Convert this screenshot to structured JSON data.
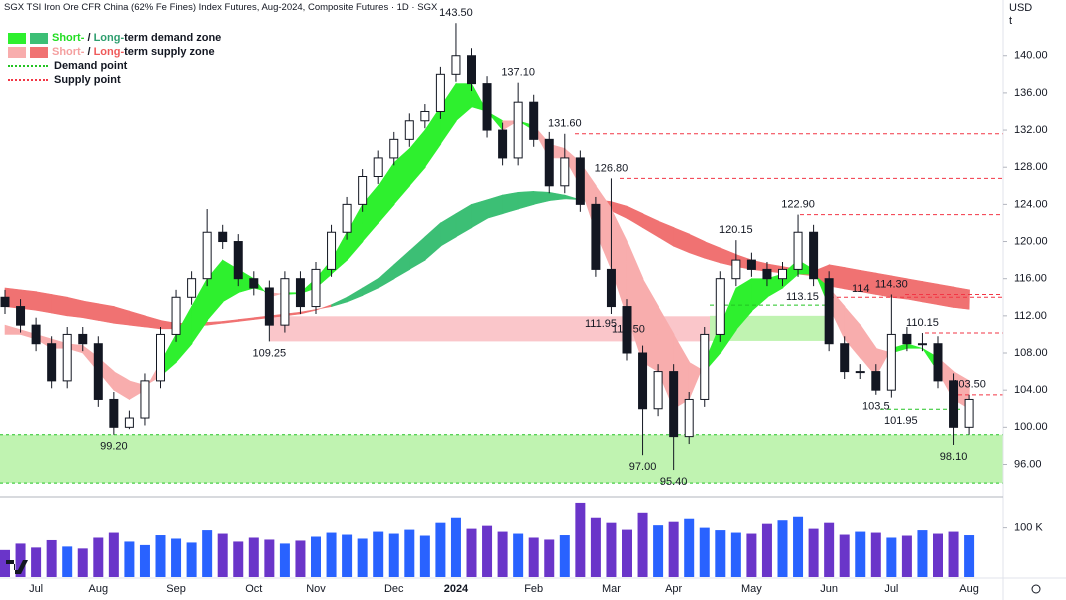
{
  "chart_data": {
    "type": "candlestick",
    "title": "SGX TSI Iron Ore CFR China (62% Fe Fines) Index Futures, Aug-2024, Composite Futures · 1D · SGX",
    "currency": "USD",
    "unit": "t",
    "categories": [
      null,
      null,
      "Jul",
      null,
      null,
      null,
      "Aug",
      null,
      null,
      null,
      null,
      "Sep",
      null,
      null,
      null,
      null,
      "Oct",
      null,
      null,
      null,
      "Nov",
      null,
      null,
      null,
      null,
      "Dec",
      null,
      null,
      null,
      "2024",
      null,
      null,
      null,
      null,
      "Feb",
      null,
      null,
      null,
      null,
      "Mar",
      null,
      null,
      null,
      "Apr",
      null,
      null,
      null,
      null,
      "May",
      null,
      null,
      null,
      null,
      "Jun",
      null,
      null,
      null,
      "Jul",
      null,
      null,
      null,
      null,
      "Aug"
    ],
    "open": [
      114,
      113,
      111,
      109,
      105,
      110,
      109,
      103,
      100,
      101,
      105,
      110,
      114,
      116,
      121,
      120,
      116,
      115,
      111,
      116,
      113,
      117,
      121,
      124,
      127,
      129,
      131,
      133,
      134,
      138,
      140,
      137,
      132,
      129,
      135,
      131,
      126,
      129,
      124,
      117,
      113,
      108,
      102,
      106,
      99,
      103,
      110,
      116,
      118,
      117,
      116,
      117,
      121,
      116,
      109,
      106,
      106,
      104,
      110,
      109,
      109,
      105,
      100
    ],
    "high": [
      114.8,
      113.8,
      111.8,
      109.8,
      110.8,
      110.8,
      109.8,
      103.8,
      101.8,
      105.8,
      110.8,
      114.8,
      116.8,
      123.5,
      121.8,
      120.8,
      116.8,
      115.8,
      116.8,
      116.8,
      117.8,
      121.8,
      124.8,
      127.8,
      129.8,
      131.8,
      133.8,
      134.8,
      138.8,
      143.5,
      140.8,
      137.8,
      132.8,
      137.1,
      135.8,
      131.8,
      131.6,
      129.8,
      124.8,
      126.8,
      113.8,
      108.8,
      106.8,
      106.8,
      103.8,
      110.8,
      116.8,
      120.15,
      118.8,
      117.8,
      117.8,
      122.9,
      121.8,
      116.8,
      109.8,
      106.8,
      106.8,
      114.3,
      110.8,
      110.15,
      109.8,
      105.8,
      103.5
    ],
    "low": [
      112.2,
      110.2,
      108.2,
      104.2,
      104.2,
      108.2,
      102.2,
      99.2,
      99.8,
      100.2,
      104.2,
      109.2,
      113.2,
      115.2,
      119.2,
      115.2,
      114.2,
      109.25,
      110.2,
      112.2,
      112.2,
      116.2,
      120.2,
      123.2,
      126.2,
      128.2,
      130.2,
      132.2,
      133.2,
      137.2,
      136.2,
      131.2,
      128.2,
      128.2,
      130.2,
      125.2,
      125.2,
      123.2,
      116.2,
      112.2,
      107.2,
      97.0,
      101.2,
      95.4,
      98.2,
      102.2,
      109.2,
      115.2,
      116.2,
      115.2,
      115.2,
      116.2,
      115.2,
      108.2,
      105.2,
      105.2,
      103.5,
      103.2,
      108.2,
      108.2,
      104.2,
      98.1,
      99.2
    ],
    "close": [
      113,
      111,
      109,
      105,
      110,
      109,
      103,
      100,
      101,
      105,
      110,
      114,
      116,
      121,
      120,
      116,
      115,
      111,
      116,
      113,
      117,
      121,
      124,
      127,
      129,
      131,
      133,
      134,
      138,
      140,
      137,
      132,
      129,
      135,
      131,
      126,
      129,
      124,
      117,
      113,
      108,
      102,
      106,
      99,
      103,
      110,
      116,
      118,
      117,
      116,
      117,
      121,
      116,
      109,
      106,
      106,
      104,
      110,
      109,
      109,
      105,
      100,
      103
    ],
    "high_labels": {
      "29": "143.50",
      "33": "137.10",
      "36": "131.60",
      "39": "126.80",
      "47": "120.15",
      "51": "122.90",
      "57": "114.30",
      "59": "110.15",
      "62": "103.50"
    },
    "low_labels": {
      "7": "99.20",
      "17": "109.25",
      "41": "97.00",
      "43": "95.40",
      "56": "103.5",
      "61": "98.10"
    },
    "up_color": "#ffffff",
    "down_color": "#131722",
    "bands": [
      {
        "fast": [
          113,
          112.8,
          112.6,
          112.3,
          112,
          111.8,
          111.5,
          111.2,
          111,
          110.8,
          110.6,
          110.6,
          110.8,
          111,
          111.2,
          111.4,
          111.6,
          111.8,
          112,
          112.2,
          112.6,
          113.2,
          114,
          115,
          116,
          117.5,
          119,
          120.5,
          122,
          123,
          124,
          124.5,
          125,
          125.3,
          125.4,
          125.3,
          125,
          124.5,
          124,
          123.3,
          122.5,
          121.5,
          120.5,
          119.5,
          118.8,
          118.2,
          117.7,
          117.3,
          117,
          116.8,
          116.6,
          116.5,
          116.3,
          115.2,
          114.9,
          114.6,
          114.3,
          114,
          113.8,
          113.5,
          113.2,
          112.9,
          112.7
        ],
        "slow": [
          115,
          114.8,
          114.6,
          114.3,
          114,
          113.6,
          113.3,
          113,
          112.5,
          112,
          111.5,
          111.2,
          111.2,
          111.3,
          111.4,
          111.6,
          111.8,
          112,
          112.2,
          112.4,
          112.7,
          113,
          113.5,
          114.2,
          115,
          116,
          117,
          118,
          119.5,
          120.5,
          121.5,
          122.5,
          123,
          123.5,
          124,
          124.4,
          124.6,
          124.5,
          124.5,
          124.3,
          123.8,
          123,
          122.2,
          121.5,
          120.8,
          120,
          119.3,
          118.6,
          118,
          117.6,
          117.3,
          117,
          116.8,
          117.5,
          117.2,
          116.9,
          116.6,
          116.3,
          116,
          115.7,
          115.4,
          115.1,
          114.8
        ],
        "up_color": "#3cbf75",
        "down_color": "#f07272"
      },
      {
        "fast": [
          110,
          110,
          109.5,
          108.5,
          108.5,
          108,
          106,
          104,
          103,
          104,
          107,
          110,
          113,
          116,
          118,
          117,
          116,
          114,
          114.5,
          114.5,
          116,
          118,
          121,
          124,
          126,
          128.5,
          130,
          132,
          134.5,
          137,
          137,
          134,
          132,
          133,
          132,
          129,
          129,
          126,
          121,
          117,
          112,
          107,
          106,
          102,
          103,
          107,
          111,
          115,
          116,
          116,
          116.5,
          118,
          117,
          113,
          109.5,
          107.5,
          105.5,
          108.5,
          109,
          108.5,
          106,
          103,
          102
        ],
        "slow": [
          111,
          110.5,
          110,
          109.5,
          109,
          108.8,
          107.5,
          106,
          105,
          104.5,
          105.5,
          107,
          109,
          111.5,
          113.5,
          114.5,
          115,
          114.5,
          114.3,
          114.4,
          115,
          116.5,
          118,
          120,
          122,
          124,
          126,
          128,
          130.5,
          133,
          134.5,
          134,
          133,
          133,
          132.5,
          130.5,
          130,
          128.5,
          126,
          123.5,
          120,
          116,
          113,
          110,
          107,
          106,
          108,
          110.5,
          112.5,
          114,
          115,
          116.5,
          116.5,
          115,
          113,
          111,
          108.5,
          108,
          108.5,
          108.5,
          107.5,
          106,
          105
        ],
        "up_color": "#2ef02e",
        "down_color": "#f8adad"
      }
    ],
    "zones": [
      {
        "kind": "supply",
        "low": 109.25,
        "high": 111.95,
        "label": "111.95",
        "color": "#f9c0c4"
      },
      {
        "kind": "demand",
        "low": 109.3,
        "high": 112.0,
        "color": "#b9f2a8"
      },
      {
        "kind": "demand",
        "low": 94.0,
        "high": 99.2,
        "color": "#b9f2a8"
      }
    ],
    "levels": [
      {
        "kind": "supply",
        "value": 131.6
      },
      {
        "kind": "supply",
        "value": 126.8
      },
      {
        "kind": "supply",
        "value": 122.9
      },
      {
        "kind": "supply",
        "value": 114.3
      },
      {
        "kind": "supply",
        "value": 114,
        "label": "114"
      },
      {
        "kind": "supply",
        "value": 110.15
      },
      {
        "kind": "supply",
        "value": 103.5
      },
      {
        "kind": "demand",
        "value": 113.15,
        "label": "113.15"
      },
      {
        "kind": "demand",
        "value": 101.95,
        "label": "101.95"
      },
      {
        "kind": "note",
        "value": 110.5,
        "label": "110.50"
      }
    ],
    "level_colors": {
      "supply": "#f23645",
      "demand": "#22c322",
      "note": "#131722"
    },
    "legend": [
      {
        "parts": [
          "Short-",
          " / ",
          "Long-",
          "term demand zone"
        ],
        "part_colors": [
          "#22dd22",
          "#131722",
          "#2e9e6e",
          "#131722"
        ],
        "swatches": [
          "#2ef02e",
          "#3cbf75"
        ]
      },
      {
        "parts": [
          "Short-",
          " / ",
          "Long-",
          "term supply zone"
        ],
        "part_colors": [
          "#f4a0a0",
          "#131722",
          "#ef5a5a",
          "#131722"
        ],
        "swatches": [
          "#f8adad",
          "#f07272"
        ]
      },
      {
        "parts": [
          "Demand point"
        ],
        "part_colors": [
          "#131722"
        ],
        "line_color": "#22c322"
      },
      {
        "parts": [
          "Supply point"
        ],
        "part_colors": [
          "#131722"
        ],
        "line_color": "#f23645"
      }
    ],
    "ylim": [
      92.5,
      146
    ],
    "yticks": [
      {
        "value": 96,
        "label": "96.00"
      },
      {
        "value": 100,
        "label": "100.00"
      },
      {
        "value": 104,
        "label": "104.00"
      },
      {
        "value": 108,
        "label": "108.00"
      },
      {
        "value": 112,
        "label": "112.00"
      },
      {
        "value": 116,
        "label": "116.00"
      },
      {
        "value": 120,
        "label": "120.00"
      },
      {
        "value": 124,
        "label": "124.00"
      },
      {
        "value": 128,
        "label": "128.00"
      },
      {
        "value": 132,
        "label": "132.00"
      },
      {
        "value": 136,
        "label": "136.00"
      },
      {
        "value": 140,
        "label": "140.00"
      }
    ],
    "volume": [
      55000,
      68000,
      60000,
      75000,
      62000,
      58000,
      80000,
      90000,
      72000,
      65000,
      85000,
      78000,
      70000,
      95000,
      88000,
      72000,
      80000,
      76000,
      68000,
      74000,
      82000,
      90000,
      86000,
      78000,
      92000,
      88000,
      96000,
      84000,
      110000,
      120000,
      98000,
      104000,
      92000,
      88000,
      80000,
      76000,
      85000,
      150000,
      120000,
      110000,
      96000,
      130000,
      105000,
      112000,
      118000,
      100000,
      95000,
      90000,
      88000,
      108000,
      115000,
      122000,
      98000,
      110000,
      86000,
      92000,
      90000,
      80000,
      84000,
      95000,
      88000,
      92000,
      85000
    ],
    "volume_up_color": "#2962ff",
    "volume_down_color": "#6a35c9",
    "vlim": [
      0,
      162000
    ],
    "vticks": [
      {
        "value": 100000,
        "label": "100 K"
      }
    ]
  }
}
